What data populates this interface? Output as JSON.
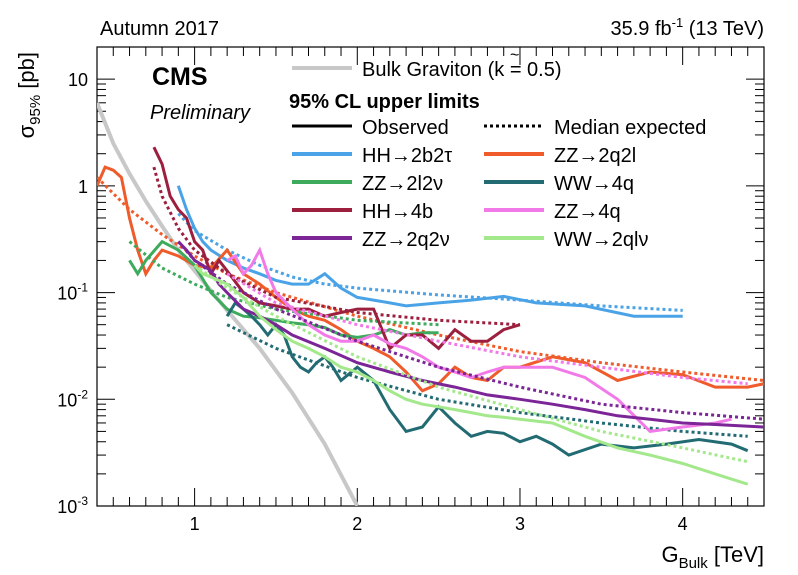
{
  "header": {
    "left": "Autumn 2017",
    "lumi": "35.9 fb",
    "lumi_sup": "-1",
    "energy": " (13 TeV)"
  },
  "badge": {
    "cms": "CMS",
    "preliminary": "Preliminary"
  },
  "legend": {
    "graviton": "Bulk Graviton (",
    "graviton_k": "k",
    "graviton_tail": " = 0.5)",
    "title": "95% CL upper limits",
    "observed": "Observed",
    "expected": "Median expected"
  },
  "colors": {
    "graviton": "#c8c8c8",
    "HH2b2tau": "#4aa3e6",
    "ZZ2q2l": "#ef5b2a",
    "ZZ2l2nu": "#3daa5c",
    "WW4q": "#236b73",
    "HH4b": "#9c1f3e",
    "ZZ4q": "#f27ae8",
    "ZZ2q2nu": "#7b2596",
    "WW2qlnu": "#a4e88c"
  },
  "chart_data": {
    "type": "line",
    "xlabel": "G",
    "xlabel_sub": "Bulk",
    "xlabel_unit": " [TeV]",
    "ylabel": "σ",
    "ylabel_sub": "95%",
    "ylabel_unit": " [pb]",
    "xlim": [
      0.4,
      4.5
    ],
    "ylim": [
      0.001,
      20
    ],
    "yscale": "log",
    "x_ticks": [
      "1",
      "2",
      "3",
      "4"
    ],
    "y_ticks": [
      {
        "base": "10",
        "exp": "-3"
      },
      {
        "base": "10",
        "exp": "-2"
      },
      {
        "base": "10",
        "exp": "-1"
      },
      {
        "base": "1",
        "exp": ""
      },
      {
        "base": "10",
        "exp": ""
      }
    ],
    "theory": {
      "name": "Bulk Graviton",
      "color_key": "graviton",
      "x": [
        0.4,
        0.5,
        0.6,
        0.7,
        0.8,
        0.9,
        1.0,
        1.2,
        1.4,
        1.6,
        1.8,
        2.0
      ],
      "y": [
        6.0,
        2.5,
        1.3,
        0.72,
        0.42,
        0.25,
        0.16,
        0.068,
        0.03,
        0.0115,
        0.0038,
        0.001
      ]
    },
    "series": [
      {
        "name": "HH→2b2τ",
        "color_key": "HH2b2tau",
        "observed": {
          "x": [
            0.9,
            0.95,
            1.0,
            1.05,
            1.1,
            1.2,
            1.3,
            1.4,
            1.5,
            1.6,
            1.7,
            1.8,
            1.9,
            2.0,
            2.1,
            2.2,
            2.3,
            2.5,
            2.7,
            2.9,
            3.1,
            3.4,
            3.7,
            4.0
          ],
          "y": [
            1.0,
            0.6,
            0.4,
            0.3,
            0.25,
            0.2,
            0.17,
            0.15,
            0.13,
            0.12,
            0.12,
            0.15,
            0.11,
            0.09,
            0.085,
            0.08,
            0.075,
            0.08,
            0.085,
            0.092,
            0.08,
            0.075,
            0.06,
            0.06
          ]
        },
        "expected": {
          "x": [
            0.9,
            1.0,
            1.2,
            1.4,
            1.6,
            1.8,
            2.0,
            2.5,
            3.0,
            3.5,
            4.0
          ],
          "y": [
            0.55,
            0.38,
            0.25,
            0.18,
            0.14,
            0.12,
            0.11,
            0.095,
            0.085,
            0.075,
            0.068
          ]
        }
      },
      {
        "name": "ZZ→2q2l",
        "color_key": "ZZ2q2l",
        "observed": {
          "x": [
            0.4,
            0.45,
            0.5,
            0.55,
            0.6,
            0.65,
            0.7,
            0.75,
            0.8,
            0.9,
            1.0,
            1.1,
            1.2,
            1.3,
            1.4,
            1.5,
            1.6,
            1.7,
            1.8,
            1.9,
            2.0,
            2.1,
            2.2,
            2.3,
            2.4,
            2.5,
            2.6,
            2.7,
            2.8,
            2.9,
            3.0,
            3.2,
            3.4,
            3.6,
            3.8,
            4.0,
            4.2,
            4.4,
            4.5
          ],
          "y": [
            1.0,
            1.5,
            1.4,
            1.2,
            0.5,
            0.25,
            0.15,
            0.2,
            0.25,
            0.22,
            0.18,
            0.17,
            0.25,
            0.15,
            0.12,
            0.09,
            0.07,
            0.06,
            0.055,
            0.045,
            0.035,
            0.03,
            0.025,
            0.018,
            0.012,
            0.014,
            0.02,
            0.016,
            0.015,
            0.02,
            0.02,
            0.025,
            0.022,
            0.015,
            0.018,
            0.017,
            0.013,
            0.013,
            0.014
          ]
        },
        "expected": {
          "x": [
            0.4,
            0.6,
            0.8,
            1.0,
            1.2,
            1.5,
            2.0,
            2.5,
            3.0,
            3.5,
            4.0,
            4.5
          ],
          "y": [
            1.2,
            0.6,
            0.35,
            0.22,
            0.15,
            0.1,
            0.06,
            0.04,
            0.028,
            0.022,
            0.018,
            0.015
          ]
        }
      },
      {
        "name": "ZZ→2l2ν",
        "color_key": "ZZ2l2nu",
        "observed": {
          "x": [
            0.6,
            0.65,
            0.7,
            0.8,
            0.9,
            1.0,
            1.1,
            1.2,
            1.3,
            1.4,
            1.5,
            1.6,
            1.7,
            1.8,
            1.9,
            2.0,
            2.1,
            2.2,
            2.3,
            2.4,
            2.5
          ],
          "y": [
            0.2,
            0.15,
            0.2,
            0.3,
            0.25,
            0.18,
            0.1,
            0.07,
            0.06,
            0.058,
            0.055,
            0.052,
            0.05,
            0.047,
            0.04,
            0.038,
            0.04,
            0.045,
            0.04,
            0.042,
            0.042
          ]
        },
        "expected": {
          "x": [
            0.6,
            0.8,
            1.0,
            1.2,
            1.5,
            2.0,
            2.5
          ],
          "y": [
            0.3,
            0.17,
            0.12,
            0.09,
            0.07,
            0.055,
            0.05
          ]
        }
      },
      {
        "name": "WW→4q",
        "color_key": "WW4q",
        "observed": {
          "x": [
            1.2,
            1.25,
            1.3,
            1.35,
            1.4,
            1.45,
            1.5,
            1.55,
            1.6,
            1.65,
            1.7,
            1.75,
            1.8,
            1.85,
            1.9,
            2.0,
            2.1,
            2.2,
            2.3,
            2.4,
            2.5,
            2.6,
            2.7,
            2.8,
            2.9,
            3.0,
            3.1,
            3.2,
            3.3,
            3.5,
            3.7,
            3.9,
            4.1,
            4.3,
            4.4
          ],
          "y": [
            0.06,
            0.08,
            0.07,
            0.06,
            0.05,
            0.04,
            0.05,
            0.04,
            0.025,
            0.02,
            0.018,
            0.022,
            0.025,
            0.02,
            0.015,
            0.02,
            0.015,
            0.008,
            0.005,
            0.0055,
            0.0085,
            0.006,
            0.0045,
            0.005,
            0.0048,
            0.004,
            0.0045,
            0.0038,
            0.003,
            0.0038,
            0.0035,
            0.0038,
            0.0042,
            0.0038,
            0.0033
          ]
        },
        "expected": {
          "x": [
            1.2,
            1.5,
            2.0,
            2.5,
            3.0,
            3.5,
            4.0,
            4.4
          ],
          "y": [
            0.05,
            0.03,
            0.016,
            0.01,
            0.0075,
            0.006,
            0.005,
            0.0045
          ]
        }
      },
      {
        "name": "HH→4b",
        "color_key": "HH4b",
        "observed": {
          "x": [
            0.75,
            0.8,
            0.85,
            0.9,
            0.95,
            1.0,
            1.05,
            1.1,
            1.15,
            1.2,
            1.3,
            1.4,
            1.5,
            1.6,
            1.7,
            1.8,
            1.9,
            2.0,
            2.1,
            2.2,
            2.3,
            2.4,
            2.5,
            2.6,
            2.7,
            2.8,
            2.9,
            3.0
          ],
          "y": [
            2.3,
            1.6,
            0.8,
            0.6,
            0.5,
            0.3,
            0.25,
            0.15,
            0.2,
            0.16,
            0.1,
            0.08,
            0.075,
            0.07,
            0.07,
            0.06,
            0.065,
            0.07,
            0.07,
            0.03,
            0.04,
            0.04,
            0.03,
            0.045,
            0.035,
            0.035,
            0.045,
            0.05
          ]
        },
        "expected": {
          "x": [
            0.75,
            0.8,
            0.9,
            1.0,
            1.2,
            1.5,
            2.0,
            2.5,
            3.0
          ],
          "y": [
            1.5,
            0.8,
            0.4,
            0.25,
            0.15,
            0.09,
            0.065,
            0.055,
            0.05
          ]
        }
      },
      {
        "name": "ZZ→4q",
        "color_key": "ZZ4q",
        "observed": {
          "x": [
            1.2,
            1.25,
            1.3,
            1.35,
            1.4,
            1.45,
            1.5,
            1.6,
            1.7,
            1.8,
            1.9,
            2.0,
            2.1,
            2.2,
            2.3,
            2.4,
            2.5,
            2.6,
            2.7,
            2.8,
            2.9,
            3.0,
            3.2,
            3.4,
            3.6,
            3.8,
            4.0,
            4.2,
            4.3
          ],
          "y": [
            0.2,
            0.22,
            0.15,
            0.18,
            0.25,
            0.15,
            0.1,
            0.07,
            0.05,
            0.04,
            0.035,
            0.035,
            0.04,
            0.033,
            0.03,
            0.025,
            0.02,
            0.018,
            0.016,
            0.018,
            0.02,
            0.02,
            0.02,
            0.016,
            0.01,
            0.005,
            0.0055,
            0.006,
            0.0065
          ]
        },
        "expected": {
          "x": [
            1.2,
            1.5,
            2.0,
            2.5,
            3.0,
            3.5,
            4.0,
            4.4
          ],
          "y": [
            0.15,
            0.08,
            0.05,
            0.035,
            0.025,
            0.02,
            0.016,
            0.014
          ]
        }
      },
      {
        "name": "ZZ→2q2ν",
        "color_key": "ZZ2q2nu",
        "observed": {
          "x": [
            0.9,
            0.95,
            1.0,
            1.05,
            1.1,
            1.15,
            1.2,
            1.3,
            1.4,
            1.5,
            1.6,
            1.8,
            2.0,
            2.2,
            2.4,
            2.6,
            2.8,
            3.0,
            3.2,
            3.4,
            3.6,
            3.8,
            4.0,
            4.2,
            4.5
          ],
          "y": [
            0.3,
            0.25,
            0.2,
            0.18,
            0.16,
            0.12,
            0.1,
            0.07,
            0.06,
            0.05,
            0.04,
            0.03,
            0.022,
            0.018,
            0.015,
            0.013,
            0.011,
            0.01,
            0.009,
            0.008,
            0.007,
            0.0065,
            0.006,
            0.0058,
            0.0055
          ]
        },
        "expected": {
          "x": [
            0.9,
            1.0,
            1.2,
            1.5,
            2.0,
            2.5,
            3.0,
            3.5,
            4.0,
            4.5
          ],
          "y": [
            0.3,
            0.2,
            0.12,
            0.07,
            0.035,
            0.02,
            0.013,
            0.009,
            0.0075,
            0.0065
          ]
        }
      },
      {
        "name": "WW→2qlν",
        "color_key": "WW2qlnu",
        "observed": {
          "x": [
            1.0,
            1.05,
            1.1,
            1.2,
            1.3,
            1.4,
            1.5,
            1.6,
            1.7,
            1.8,
            1.9,
            2.0,
            2.1,
            2.2,
            2.3,
            2.4,
            2.5,
            2.6,
            2.7,
            2.8,
            2.9,
            3.0,
            3.2,
            3.4,
            3.6,
            3.8,
            4.0,
            4.2,
            4.4
          ],
          "y": [
            0.18,
            0.15,
            0.14,
            0.12,
            0.09,
            0.06,
            0.045,
            0.035,
            0.03,
            0.025,
            0.02,
            0.018,
            0.015,
            0.012,
            0.01,
            0.009,
            0.0085,
            0.008,
            0.0075,
            0.007,
            0.0068,
            0.0065,
            0.006,
            0.0045,
            0.0035,
            0.003,
            0.0025,
            0.002,
            0.0016
          ]
        },
        "expected": {
          "x": [
            1.0,
            1.2,
            1.5,
            2.0,
            2.5,
            3.0,
            3.5,
            4.0,
            4.4
          ],
          "y": [
            0.18,
            0.11,
            0.06,
            0.025,
            0.013,
            0.008,
            0.005,
            0.0035,
            0.0026
          ]
        }
      }
    ]
  }
}
